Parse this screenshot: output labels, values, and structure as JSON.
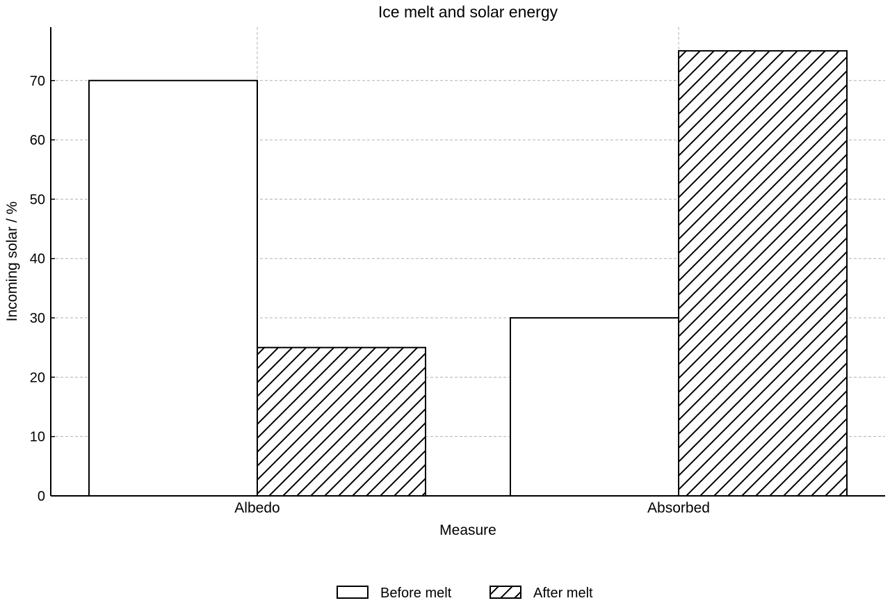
{
  "colors": {
    "stroke": "#000000",
    "fill": "#ffffff",
    "grid": "#b0b0b0"
  },
  "chart_data": {
    "type": "bar",
    "title": "Ice melt and solar energy",
    "xlabel": "Measure",
    "ylabel": "Incoming solar / %",
    "categories": [
      "Albedo",
      "Absorbed"
    ],
    "series": [
      {
        "name": "Before melt",
        "values": [
          70,
          30
        ],
        "pattern": "none"
      },
      {
        "name": "After melt",
        "values": [
          25,
          75
        ],
        "pattern": "diagonal-hatch"
      }
    ],
    "ylim": [
      0,
      79
    ],
    "yticks": [
      0,
      10,
      20,
      30,
      40,
      50,
      60,
      70
    ],
    "grid": true,
    "legend": "bottom-center"
  }
}
